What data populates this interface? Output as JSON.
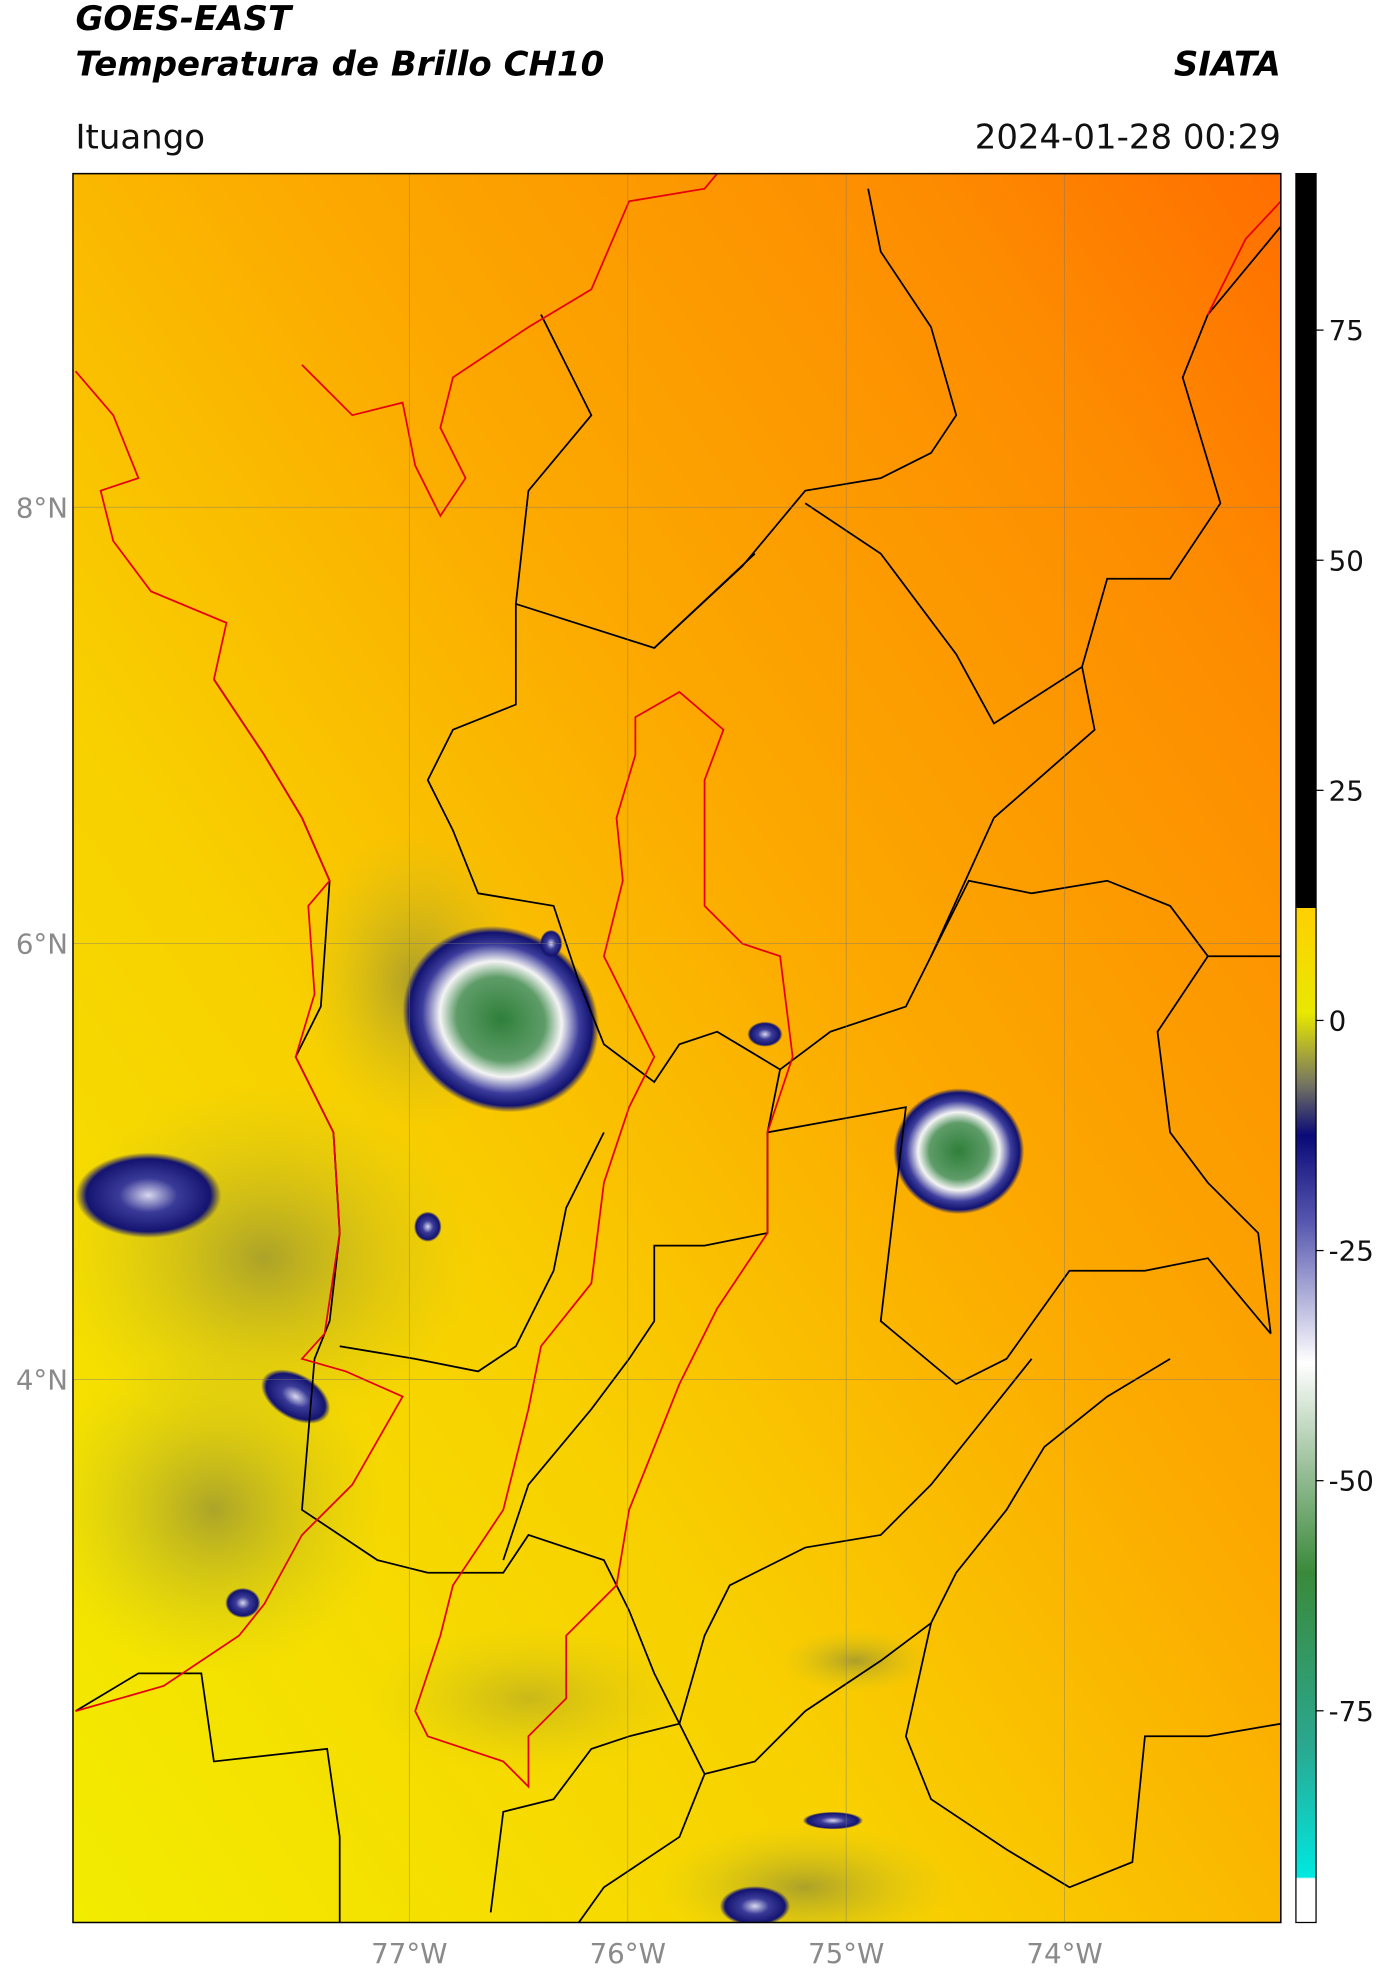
{
  "header": {
    "title": "GOES-EAST",
    "subtitle": "Temperatura de Brillo CH10",
    "source": "SIATA",
    "location": "Ituango",
    "timestamp": "2024-01-28 00:29"
  },
  "map": {
    "xlim": [
      -78.54,
      -73.01
    ],
    "ylim": [
      1.51,
      9.53
    ],
    "xticks": [
      {
        "value": -77,
        "label": "77°W"
      },
      {
        "value": -76,
        "label": "76°W"
      },
      {
        "value": -75,
        "label": "75°W"
      },
      {
        "value": -74,
        "label": "74°W"
      }
    ],
    "yticks": [
      {
        "value": 8,
        "label": "8°N"
      },
      {
        "value": 6,
        "label": "6°N"
      },
      {
        "value": 4,
        "label": "4°N"
      }
    ]
  },
  "colorbar": {
    "lim": [
      -98,
      92
    ],
    "ticks": [
      75,
      50,
      25,
      0,
      -25,
      -50,
      -75
    ]
  }
}
